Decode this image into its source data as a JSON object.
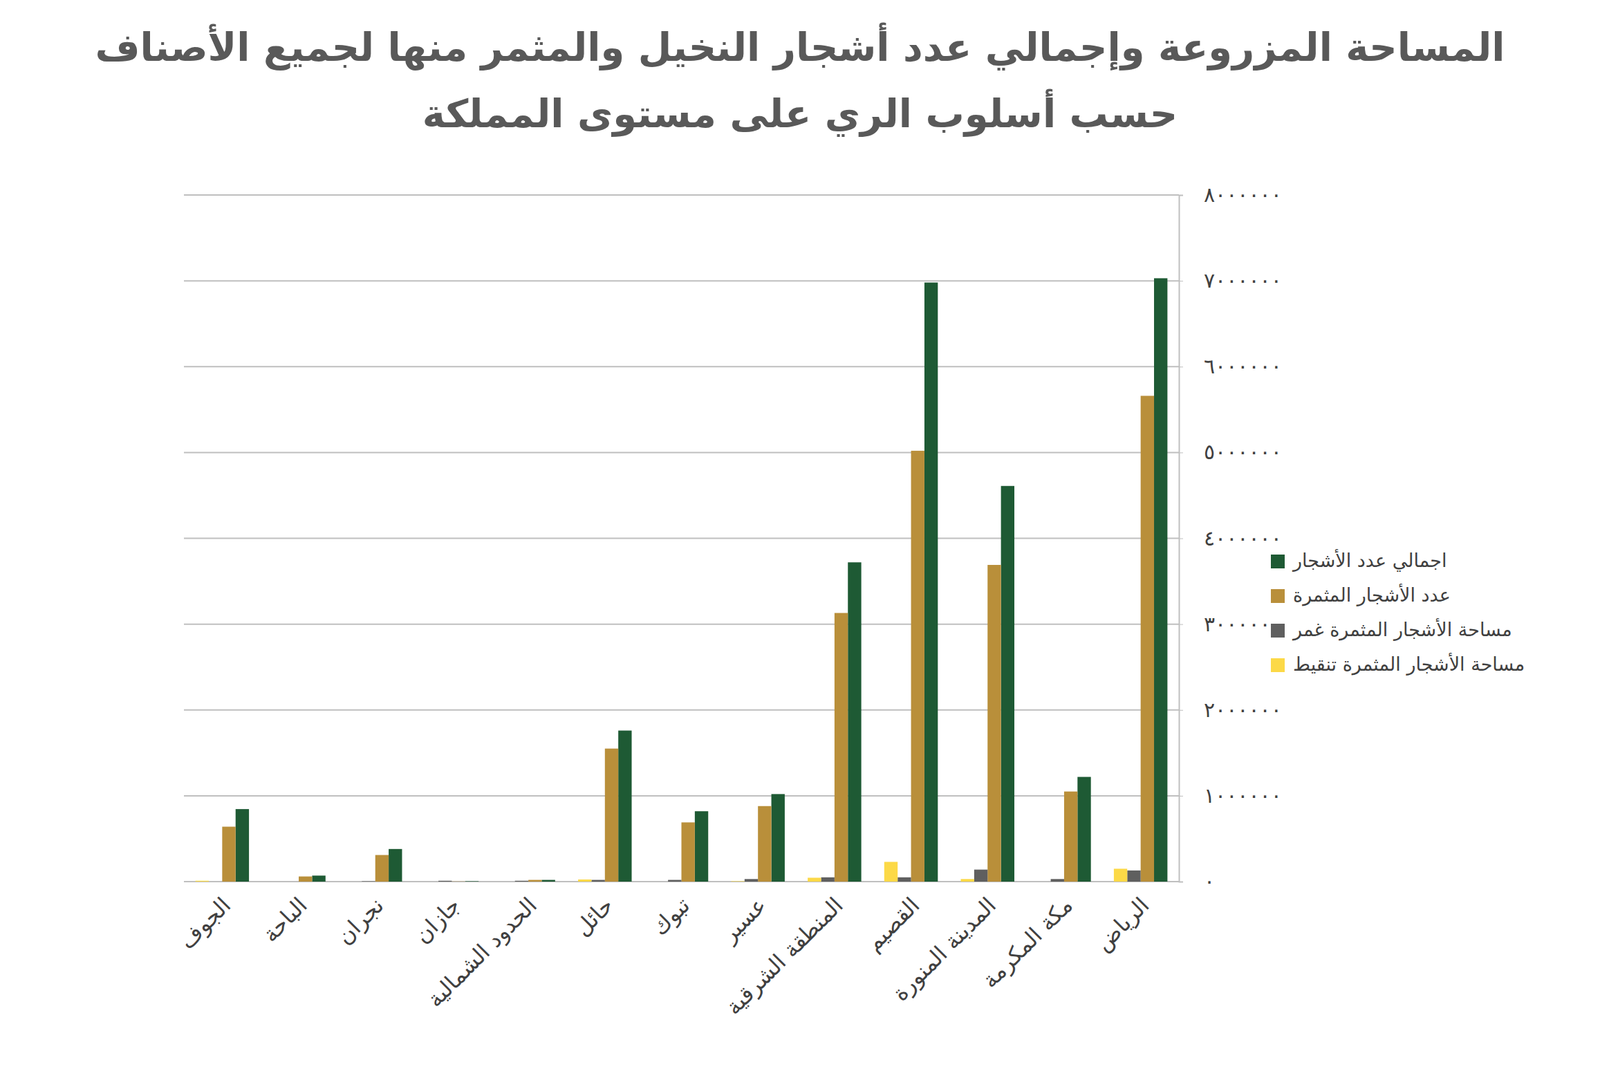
{
  "chart_data": {
    "type": "bar",
    "title": "المساحة المزروعة وإجمالي عدد أشجار النخيل والمثمر منها لجميع الأصناف\nحسب أسلوب الري على مستوى المملكة",
    "categories": [
      "الجوف",
      "الباحة",
      "نجران",
      "جازان",
      "الحدود الشمالية",
      "حائل",
      "تبوك",
      "عسير",
      "المنطقة الشرقية",
      "القصيم",
      "المدينة المنورة",
      "مكة المكرمة",
      "الرياض"
    ],
    "series": [
      {
        "name": "اجمالي عدد الأشجار",
        "color": "#1e5a34",
        "values": [
          845000,
          70000,
          380000,
          5000,
          20000,
          1760000,
          820000,
          1020000,
          3720000,
          6980000,
          4610000,
          1220000,
          7030000
        ]
      },
      {
        "name": "عدد الأشجار المثمرة",
        "color": "#b98f3a",
        "values": [
          640000,
          60000,
          310000,
          2000,
          20000,
          1550000,
          690000,
          880000,
          3130000,
          5020000,
          3690000,
          1050000,
          5660000
        ]
      },
      {
        "name": "مساحة الأشجار المثمرة غمر",
        "color": "#5f5f5f",
        "values": [
          0,
          0,
          5000,
          10000,
          10000,
          20000,
          20000,
          30000,
          50000,
          50000,
          140000,
          30000,
          130000
        ]
      },
      {
        "name": "مساحة الأشجار المثمرة تنقيط",
        "color": "#fcd947",
        "values": [
          10000,
          0,
          0,
          0,
          0,
          25000,
          0,
          5000,
          45000,
          230000,
          30000,
          0,
          150000
        ]
      }
    ],
    "ylim": [
      0,
      8000000
    ],
    "yticks": [
      {
        "value": 0,
        "label": "٠"
      },
      {
        "value": 1000000,
        "label": "١٠٠٠٠٠٠"
      },
      {
        "value": 2000000,
        "label": "٢٠٠٠٠٠٠"
      },
      {
        "value": 3000000,
        "label": "٣٠٠٠٠٠٠"
      },
      {
        "value": 4000000,
        "label": "٤٠٠٠٠٠٠"
      },
      {
        "value": 5000000,
        "label": "٥٠٠٠٠٠٠"
      },
      {
        "value": 6000000,
        "label": "٦٠٠٠٠٠٠"
      },
      {
        "value": 7000000,
        "label": "٧٠٠٠٠٠٠"
      },
      {
        "value": 8000000,
        "label": "٨٠٠٠٠٠٠"
      }
    ],
    "grid": true,
    "legend": "right"
  }
}
